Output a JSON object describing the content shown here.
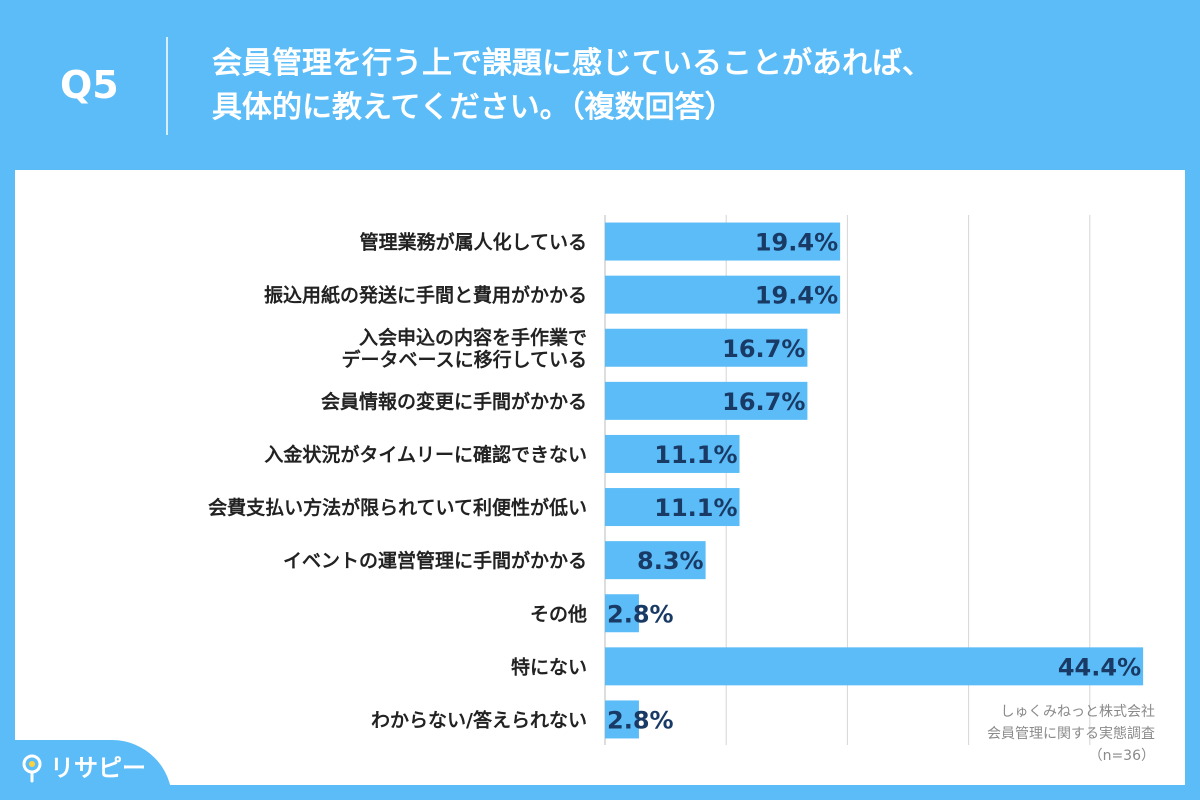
{
  "question": {
    "number": "Q5",
    "title_line1": "会員管理を行う上で課題に感じていることがあれば、",
    "title_line2": "具体的に教えてください。（複数回答）"
  },
  "chart_data": {
    "type": "bar",
    "orientation": "horizontal",
    "categories": [
      [
        "管理業務が属人化している"
      ],
      [
        "振込用紙の発送に手間と費用がかかる"
      ],
      [
        "入会申込の内容を手作業で",
        "データベースに移行している"
      ],
      [
        "会員情報の変更に手間がかかる"
      ],
      [
        "入金状況がタイムリーに確認できない"
      ],
      [
        "会費支払い方法が限られていて利便性が低い"
      ],
      [
        "イベントの運営管理に手間がかかる"
      ],
      [
        "その他"
      ],
      [
        "特にない"
      ],
      [
        "わからない/答えられない"
      ]
    ],
    "values": [
      19.4,
      19.4,
      16.7,
      16.7,
      11.1,
      11.1,
      8.3,
      2.8,
      44.4,
      2.8
    ],
    "value_suffix": "%",
    "xlim": [
      0,
      50
    ],
    "grid": true,
    "bar_color": "#5bbcf7",
    "label_color": "#1a3a66",
    "gridline_color": "#d6d6d6"
  },
  "footnote": {
    "line1": "しゅくみねっと株式会社",
    "line2": "会員管理に関する実態調査",
    "line3": "（n=36）"
  },
  "brand": {
    "logo_text": "リサピー",
    "icon": "pin-icon"
  }
}
